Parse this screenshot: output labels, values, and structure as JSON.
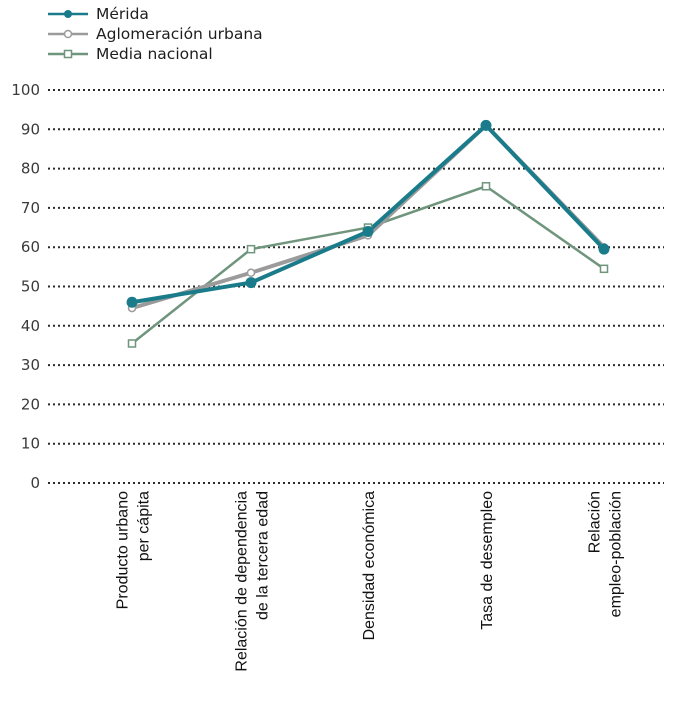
{
  "chart_data": {
    "type": "line",
    "categories": [
      [
        "Producto urbano",
        "per cápita"
      ],
      [
        "Relación de dependencia",
        "de la tercera edad"
      ],
      [
        "Densidad económica"
      ],
      [
        "Tasa de desempleo"
      ],
      [
        "Relación",
        "empleo-población"
      ]
    ],
    "series": [
      {
        "name": "Mérida",
        "values": [
          46,
          51,
          64,
          91,
          59.5
        ],
        "color": "#1a7c8a",
        "marker": "filled-circle"
      },
      {
        "name": "Aglomeración urbana",
        "values": [
          44.5,
          53.5,
          63,
          91,
          60
        ],
        "color": "#9b9b9b",
        "marker": "open-circle"
      },
      {
        "name": "Media nacional",
        "values": [
          35.5,
          59.5,
          65,
          75.5,
          54.5
        ],
        "color": "#6f957c",
        "marker": "open-square"
      }
    ],
    "ylim": [
      0,
      100
    ],
    "yticks": [
      0,
      10,
      20,
      30,
      40,
      50,
      60,
      70,
      80,
      90,
      100
    ],
    "grid": "horizontal-dotted",
    "legend_position": "top-left"
  }
}
